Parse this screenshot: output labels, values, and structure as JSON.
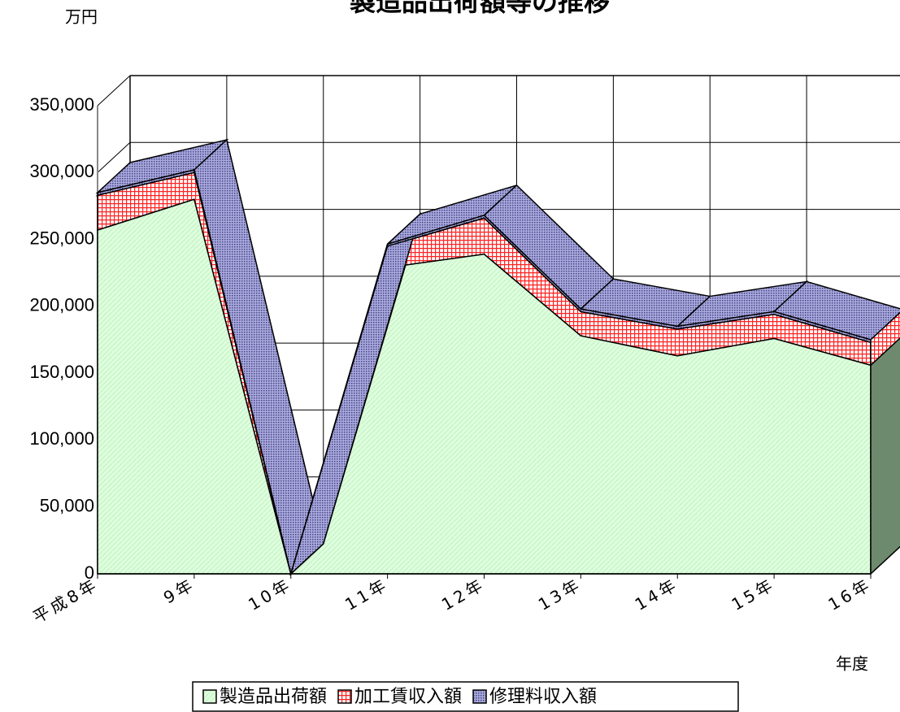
{
  "chart_data": {
    "type": "area3d_stacked",
    "title": "製造品出荷額等の推移",
    "y_label": "万円",
    "x_label": "年度",
    "categories": [
      "平成8年",
      "9年",
      "10年",
      "11年",
      "12年",
      "13年",
      "14年",
      "15年",
      "16年"
    ],
    "series": [
      {
        "name": "製造品出荷額",
        "color": "#ddffdd",
        "values": [
          257000,
          280000,
          0,
          229000,
          239000,
          178000,
          163000,
          176000,
          156000
        ]
      },
      {
        "name": "加工賃収入額",
        "color": "#ff3333",
        "values": [
          26000,
          20000,
          0,
          16000,
          27000,
          18000,
          20000,
          18000,
          17000
        ]
      },
      {
        "name": "修理料収入額",
        "color": "#9999cc",
        "values": [
          2000,
          2000,
          0,
          1500,
          2000,
          2000,
          2000,
          2000,
          2000
        ]
      }
    ],
    "ylim": [
      0,
      350000
    ],
    "yticks": [
      0,
      {
        "value": 50000,
        "label": "50,000"
      },
      {
        "value": 100000,
        "label": "100,000"
      },
      {
        "value": 150000,
        "label": "150,000"
      },
      {
        "value": 200000,
        "label": "200,000"
      },
      {
        "value": 250000,
        "label": "250,000"
      },
      {
        "value": 300000,
        "label": "300,000"
      },
      {
        "value": 350000,
        "label": "350,000"
      }
    ],
    "grid": true
  }
}
